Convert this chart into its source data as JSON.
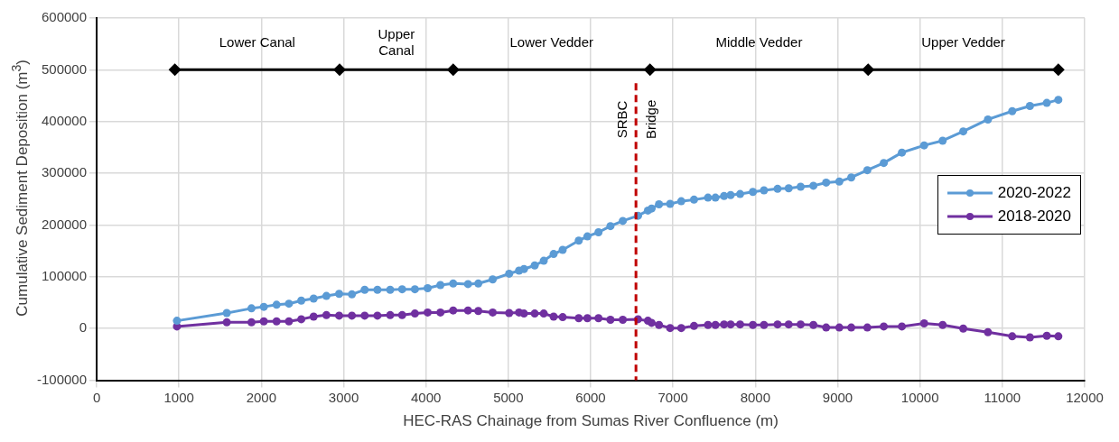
{
  "chart_data": {
    "type": "line",
    "xlabel": "HEC-RAS Chainage from Sumas River Confluence (m)",
    "ylabel": "Cumulative Sediment Deposition (m$^{3}$)",
    "xlim": [
      0,
      12000
    ],
    "xticks": [
      0,
      1000,
      2000,
      3000,
      4000,
      5000,
      6000,
      7000,
      8000,
      9000,
      10000,
      11000,
      12000
    ],
    "ylim": [
      -100000,
      600000
    ],
    "yticks": [
      -100000,
      0,
      100000,
      200000,
      300000,
      400000,
      500000,
      600000
    ],
    "grid": true,
    "legend": "right",
    "line_style": "solid",
    "series": [
      {
        "name": "2020-2022",
        "color": "#5b9bd5",
        "marker": "circle",
        "x": [
          975,
          1580,
          1880,
          2030,
          2185,
          2335,
          2485,
          2635,
          2790,
          2945,
          3100,
          3255,
          3410,
          3565,
          3710,
          3865,
          4020,
          4175,
          4330,
          4510,
          4635,
          4810,
          5010,
          5130,
          5190,
          5320,
          5430,
          5550,
          5660,
          5855,
          5960,
          6095,
          6240,
          6390,
          6575,
          6695,
          6740,
          6830,
          6965,
          7100,
          7255,
          7425,
          7515,
          7620,
          7700,
          7815,
          7970,
          8105,
          8270,
          8405,
          8550,
          8705,
          8860,
          9020,
          9165,
          9360,
          9560,
          9780,
          10050,
          10275,
          10525,
          10825,
          11120,
          11335,
          11540,
          11680
        ],
        "values": [
          15000,
          30000,
          39000,
          42000,
          46000,
          48000,
          54000,
          58000,
          63000,
          67000,
          66000,
          75000,
          75000,
          75000,
          76000,
          76000,
          78000,
          84000,
          87000,
          86000,
          87000,
          95000,
          106000,
          112000,
          115000,
          122000,
          131000,
          144000,
          152000,
          170000,
          178000,
          186000,
          198000,
          208000,
          218000,
          228000,
          232000,
          240000,
          241000,
          246000,
          249000,
          253000,
          253000,
          256000,
          258000,
          260000,
          264000,
          267000,
          270000,
          271000,
          274000,
          276000,
          282000,
          284000,
          292000,
          306000,
          320000,
          340000,
          354000,
          363000,
          381000,
          404000,
          420000,
          430000,
          436000,
          442000
        ]
      },
      {
        "name": "2018-2020",
        "color": "#7030a0",
        "marker": "circle",
        "x": [
          975,
          1580,
          1880,
          2030,
          2185,
          2335,
          2485,
          2635,
          2790,
          2945,
          3100,
          3255,
          3410,
          3565,
          3710,
          3865,
          4020,
          4175,
          4330,
          4510,
          4635,
          4810,
          5010,
          5130,
          5190,
          5320,
          5430,
          5550,
          5660,
          5855,
          5960,
          6095,
          6240,
          6390,
          6575,
          6695,
          6740,
          6830,
          6965,
          7100,
          7255,
          7425,
          7515,
          7620,
          7700,
          7815,
          7970,
          8105,
          8270,
          8405,
          8550,
          8705,
          8860,
          9020,
          9165,
          9360,
          9560,
          9780,
          10050,
          10275,
          10525,
          10825,
          11120,
          11335,
          11540,
          11680
        ],
        "values": [
          4000,
          12000,
          12000,
          14000,
          14000,
          14000,
          18000,
          23000,
          26000,
          25000,
          25000,
          25000,
          25000,
          26000,
          26000,
          29000,
          31000,
          31000,
          35000,
          35000,
          34000,
          31000,
          30000,
          31000,
          29000,
          29000,
          29000,
          23000,
          22000,
          20000,
          20000,
          20000,
          17000,
          17000,
          18000,
          15000,
          11000,
          7000,
          1000,
          1000,
          5000,
          7000,
          7000,
          8000,
          8000,
          8000,
          7000,
          7000,
          8000,
          8000,
          8000,
          7000,
          2000,
          2000,
          2000,
          2000,
          4000,
          4000,
          10000,
          7000,
          0,
          -7000,
          -15000,
          -17000,
          -14000,
          -15000
        ]
      },
      {
        "color": "#000000",
        "marker": "diamond",
        "x": [
          950,
          2950,
          4330,
          6720,
          9370,
          11680
        ],
        "values": [
          500000,
          500000,
          500000,
          500000,
          500000,
          500000
        ]
      }
    ],
    "ref_lines": [
      {
        "axis": "x",
        "value": 6550,
        "label": "SRBC Bridge",
        "color": "#c00000",
        "line_style": "dashed"
      }
    ],
    "annotations": [
      "Lower Canal",
      "Upper\nCanal",
      "Lower Vedder",
      "Middle Vedder",
      "Upper Vedder"
    ]
  }
}
